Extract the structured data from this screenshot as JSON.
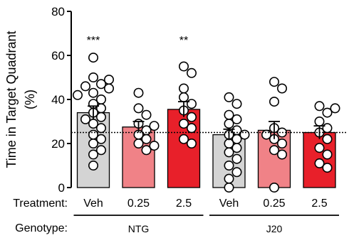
{
  "chart_data": {
    "type": "bar",
    "ylabel_line1": "Time in Target Quadrant",
    "ylabel_line2": "(%)",
    "ylim": [
      0,
      80
    ],
    "yticks": [
      "0",
      "20",
      "40",
      "60",
      "80"
    ],
    "ytick_values": [
      0,
      20,
      40,
      60,
      80
    ],
    "chance_level": 25,
    "row_labels": {
      "treatment": "Treatment:",
      "genotype": "Genotype:"
    },
    "categories": [
      "Veh",
      "0.25",
      "2.5",
      "Veh",
      "0.25",
      "2.5"
    ],
    "genotypes": [
      {
        "name": "NTG",
        "indices": [
          0,
          1,
          2
        ]
      },
      {
        "name": "J20",
        "indices": [
          3,
          4,
          5
        ]
      }
    ],
    "bars": [
      {
        "treatment": "Veh",
        "genotype": "NTG",
        "mean": 34,
        "sem": 3,
        "fill": "#d4d4d4",
        "sig": "***",
        "points": [
          59,
          50,
          49,
          47,
          46,
          45,
          43,
          42,
          40,
          38,
          36,
          34,
          32,
          31,
          29,
          27,
          24,
          22,
          20,
          17,
          15,
          10
        ]
      },
      {
        "treatment": "0.25",
        "genotype": "NTG",
        "mean": 27.5,
        "sem": 2.5,
        "fill": "#f08287",
        "sig": "",
        "points": [
          43,
          36,
          33,
          29,
          28,
          26,
          24,
          22,
          20,
          19,
          17
        ]
      },
      {
        "treatment": "2.5",
        "genotype": "NTG",
        "mean": 35.5,
        "sem": 3.5,
        "fill": "#e8202a",
        "sig": "**",
        "points": [
          55,
          52,
          45,
          41,
          38,
          35,
          32,
          29,
          27,
          22,
          20
        ]
      },
      {
        "treatment": "Veh",
        "genotype": "J20",
        "mean": 24,
        "sem": 2.5,
        "fill": "#d4d4d4",
        "sig": "",
        "points": [
          41,
          38,
          33,
          31,
          29,
          26,
          24,
          24,
          22,
          20,
          18,
          16,
          13,
          10,
          7,
          4,
          0
        ]
      },
      {
        "treatment": "0.25",
        "genotype": "J20",
        "mean": 26,
        "sem": 4,
        "fill": "#f08287",
        "sig": "",
        "points": [
          48,
          45,
          39,
          27,
          25,
          24,
          22,
          20,
          17,
          15,
          0
        ]
      },
      {
        "treatment": "2.5",
        "genotype": "J20",
        "mean": 25,
        "sem": 3,
        "fill": "#e8202a",
        "sig": "",
        "points": [
          37,
          36,
          34,
          30,
          27,
          25,
          22,
          18,
          15,
          11,
          9
        ]
      }
    ]
  }
}
